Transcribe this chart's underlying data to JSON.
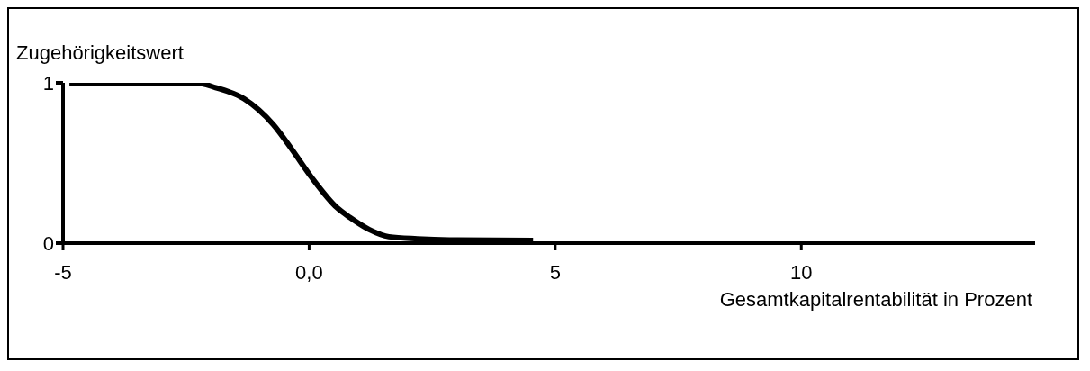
{
  "chart_data": {
    "type": "line",
    "xlabel": "Gesamtkapitalrentabilität in Prozent",
    "ylabel": "Zugehörigkeitswert",
    "x": [
      -4.87,
      -2.95,
      -2.3,
      -1.9,
      -1.32,
      -0.73,
      -0.34,
      0.05,
      0.57,
      0.83,
      1.22,
      1.62,
      2.2,
      2.85,
      4.55
    ],
    "values": [
      1,
      1,
      1,
      0.97,
      0.9,
      0.74,
      0.58,
      0.41,
      0.22,
      0.16,
      0.085,
      0.04,
      0.027,
      0.02,
      0.017
    ],
    "color": "#000000",
    "xlim": [
      -5,
      14.75
    ],
    "xticks": [
      -5,
      {
        "value": 0,
        "label": "0,0"
      },
      5,
      10
    ],
    "ylim": [
      0,
      1
    ],
    "yticks": [
      0,
      1
    ],
    "grid": false,
    "legend": false,
    "marker": "none",
    "line_style": "solid"
  }
}
